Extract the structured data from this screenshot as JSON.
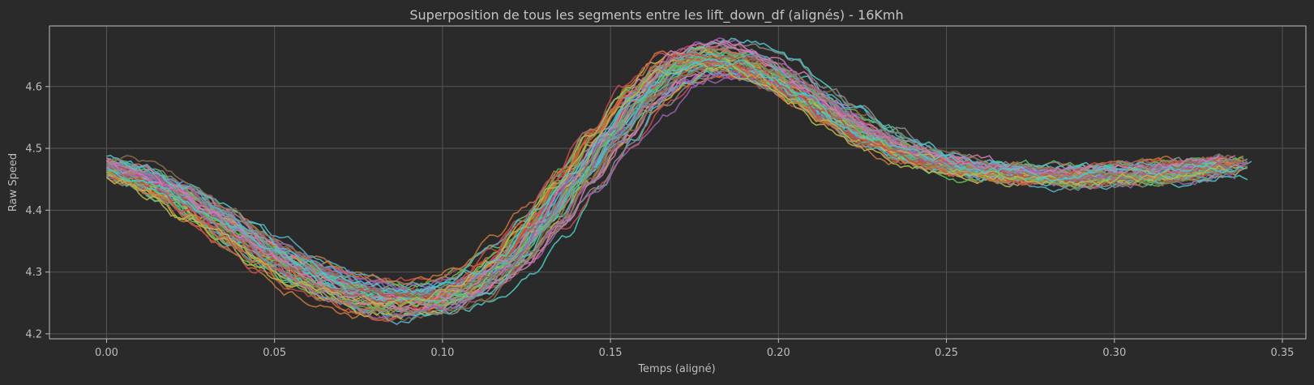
{
  "chart_data": {
    "type": "line",
    "title": "Superposition de tous les segments entre les lift_down_df (alignés) - 16Kmh",
    "xlabel": "Temps (aligné)",
    "ylabel": "Raw Speed",
    "xlim": [
      -0.017,
      0.357
    ],
    "ylim": [
      4.192,
      4.698
    ],
    "xticks": [
      0.0,
      0.05,
      0.1,
      0.15,
      0.2,
      0.25,
      0.3,
      0.35
    ],
    "xtick_labels": [
      "0.00",
      "0.05",
      "0.10",
      "0.15",
      "0.20",
      "0.25",
      "0.30",
      "0.35"
    ],
    "yticks": [
      4.2,
      4.3,
      4.4,
      4.5,
      4.6
    ],
    "ytick_labels": [
      "4.2",
      "4.3",
      "4.4",
      "4.5",
      "4.6"
    ],
    "grid": true,
    "legend": "none",
    "series_count": 60,
    "series_colors": [
      "#5aaec8",
      "#c8763a",
      "#5fb85f",
      "#c84a4a",
      "#9a62b0",
      "#8a6a4a",
      "#d07ab0",
      "#8a8a8a",
      "#b8b84a",
      "#4ac8c8"
    ],
    "mean_curve": {
      "x": [
        0.0,
        0.01,
        0.02,
        0.03,
        0.04,
        0.05,
        0.06,
        0.07,
        0.08,
        0.09,
        0.1,
        0.11,
        0.12,
        0.13,
        0.14,
        0.15,
        0.16,
        0.17,
        0.18,
        0.19,
        0.2,
        0.21,
        0.22,
        0.23,
        0.24,
        0.25,
        0.26,
        0.27,
        0.28,
        0.29,
        0.3,
        0.31,
        0.32,
        0.33,
        0.34
      ],
      "y": [
        4.47,
        4.455,
        4.43,
        4.395,
        4.36,
        4.325,
        4.295,
        4.272,
        4.258,
        4.252,
        4.258,
        4.28,
        4.32,
        4.38,
        4.45,
        4.52,
        4.585,
        4.63,
        4.645,
        4.64,
        4.615,
        4.58,
        4.545,
        4.515,
        4.49,
        4.475,
        4.465,
        4.46,
        4.456,
        4.455,
        4.456,
        4.46,
        4.465,
        4.47,
        4.475
      ]
    }
  }
}
